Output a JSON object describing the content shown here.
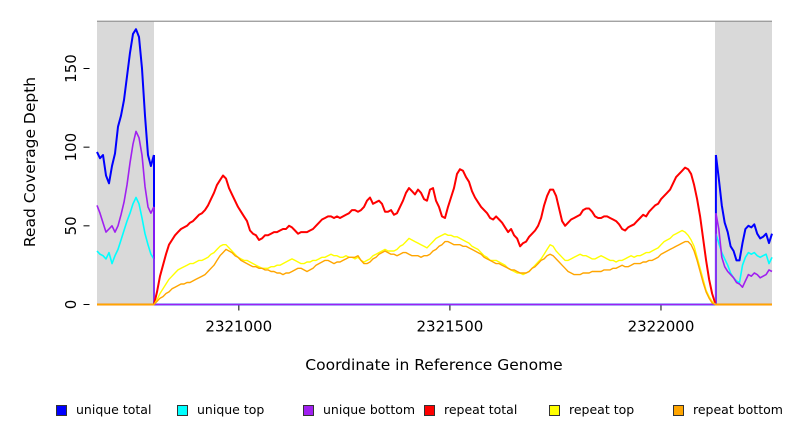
{
  "figure": {
    "ylabel": "Read Coverage Depth",
    "xlabel": "Coordinate in Reference Genome",
    "axis_color": "#000000",
    "legend": [
      {
        "label": "unique total",
        "color": "#0000ff"
      },
      {
        "label": "unique top",
        "color": "#00ffff"
      },
      {
        "label": "unique bottom",
        "color": "#a020f0"
      },
      {
        "label": "repeat total",
        "color": "#ff0000"
      },
      {
        "label": "repeat top",
        "color": "#ffff00"
      },
      {
        "label": "repeat bottom",
        "color": "#ffa500"
      }
    ]
  },
  "chart_data": {
    "type": "line",
    "title": "",
    "xlabel": "Coordinate in Reference Genome",
    "ylabel": "Read Coverage Depth",
    "xlim": [
      2320664,
      2322263
    ],
    "ylim": [
      0,
      180.5
    ],
    "xticks": [
      2321000,
      2321500,
      2322000
    ],
    "yticks": [
      0,
      50,
      100,
      150
    ],
    "grid": false,
    "legend_position": "bottom",
    "shaded_regions": [
      {
        "x0": 2320664,
        "x1": 2320799,
        "color": "#d9d9d9"
      },
      {
        "x0": 2322128,
        "x1": 2322263,
        "color": "#d9d9d9"
      }
    ],
    "hline": {
      "y": 180,
      "color": "#969696",
      "width": 1.3
    },
    "series": [
      {
        "name": "unique total",
        "color": "#0000ff",
        "width": 2,
        "segments": [
          {
            "x0": 2320664,
            "dx": 7.1,
            "v": [
              97,
              93,
              95,
              82,
              77,
              88,
              96,
              113,
              120,
              130,
              145,
              160,
              172,
              175,
              170,
              150,
              120,
              95,
              88,
              95
            ]
          },
          {
            "pts": [
              [
                2320799,
                95
              ],
              [
                2320799,
                0
              ],
              [
                2322130,
                0
              ],
              [
                2322130,
                95
              ]
            ]
          },
          {
            "x0": 2322130,
            "dx": 7.0,
            "v": [
              95,
              80,
              63,
              52,
              46,
              37,
              34,
              28,
              28,
              39,
              48,
              50,
              49,
              51,
              45,
              42,
              43,
              45,
              39,
              45
            ]
          }
        ]
      },
      {
        "name": "unique top",
        "color": "#00ffff",
        "width": 1.6,
        "segments": [
          {
            "x0": 2320664,
            "dx": 7.1,
            "v": [
              34,
              32,
              31,
              29,
              33,
              26,
              31,
              35,
              41,
              47,
              53,
              58,
              64,
              68,
              64,
              55,
              45,
              38,
              32,
              29
            ]
          },
          {
            "pts": [
              [
                2320799,
                29
              ],
              [
                2320799,
                0
              ],
              [
                2322130,
                0
              ],
              [
                2322130,
                45
              ]
            ]
          },
          {
            "x0": 2322130,
            "dx": 7.0,
            "v": [
              45,
              39,
              33,
              29,
              25,
              20,
              17,
              15,
              14,
              25,
              30,
              33,
              32,
              33,
              31,
              30,
              31,
              32,
              26,
              30
            ]
          }
        ]
      },
      {
        "name": "unique bottom",
        "color": "#a020f0",
        "width": 1.6,
        "segments": [
          {
            "x0": 2320664,
            "dx": 7.1,
            "v": [
              63,
              58,
              52,
              46,
              48,
              50,
              46,
              50,
              57,
              65,
              76,
              90,
              102,
              110,
              106,
              95,
              75,
              62,
              58,
              62
            ]
          },
          {
            "pts": [
              [
                2320799,
                62
              ],
              [
                2320799,
                0
              ],
              [
                2322130,
                0
              ],
              [
                2322130,
                58
              ]
            ]
          },
          {
            "x0": 2322130,
            "dx": 7.0,
            "v": [
              58,
              48,
              30,
              24,
              21,
              19,
              17,
              14,
              13,
              11,
              15,
              19,
              18,
              20,
              19,
              17,
              18,
              19,
              22,
              21
            ]
          }
        ]
      },
      {
        "name": "repeat total",
        "color": "#ff0000",
        "width": 2,
        "segments": [
          {
            "pts": [
              [
                2320664,
                0
              ],
              [
                2320799,
                0
              ]
            ]
          },
          {
            "x0": 2320799,
            "dx": 7.108,
            "v": [
              0,
              8,
              18,
              25,
              32,
              38,
              41,
              44,
              46,
              48,
              49,
              50,
              52,
              53,
              55,
              57,
              58,
              60,
              63,
              67,
              71,
              76,
              79,
              82,
              80,
              74,
              70,
              66,
              62,
              59,
              56,
              53,
              47,
              45,
              44,
              41,
              42,
              44,
              44,
              45,
              46,
              46,
              47,
              48,
              48,
              50,
              49,
              47,
              45,
              46,
              46,
              46,
              47,
              48,
              50,
              52,
              54,
              55,
              56,
              56,
              55,
              56,
              55,
              56,
              57,
              58,
              60,
              60,
              59,
              60,
              62,
              66,
              68,
              64,
              65,
              66,
              64,
              59,
              59,
              60,
              57,
              58,
              62,
              66,
              71,
              74,
              72,
              70,
              73,
              71,
              67,
              66,
              73,
              74,
              66,
              62,
              56,
              55,
              62,
              68,
              74,
              83,
              86,
              85,
              81,
              78,
              72,
              68,
              65,
              62,
              60,
              58,
              55,
              54,
              56,
              54,
              52,
              49,
              46,
              48,
              44,
              42,
              37,
              39,
              40,
              43,
              45,
              47,
              50,
              55,
              63,
              69,
              73,
              73,
              69,
              61,
              53,
              50,
              52,
              54,
              55,
              56,
              57,
              60,
              61,
              61,
              59,
              56,
              55,
              55,
              56,
              56,
              55,
              54,
              53,
              51,
              48,
              47,
              49,
              50,
              51,
              53,
              55,
              57,
              56,
              59,
              61,
              63,
              64,
              67,
              69,
              71,
              73,
              77,
              81,
              83,
              85,
              87,
              86,
              83,
              76,
              67,
              56,
              42,
              28,
              16,
              7,
              1
            ]
          },
          {
            "pts": [
              [
                2322128,
                0
              ],
              [
                2322263,
                0
              ]
            ]
          }
        ]
      },
      {
        "name": "repeat top",
        "color": "#ffff00",
        "width": 1.4,
        "segments": [
          {
            "pts": [
              [
                2320664,
                0
              ],
              [
                2320799,
                0
              ]
            ]
          },
          {
            "x0": 2320799,
            "dx": 7.108,
            "v": [
              0,
              3,
              7,
              10,
              13,
              16,
              18,
              20,
              22,
              23,
              24,
              25,
              26,
              26,
              27,
              28,
              28,
              29,
              30,
              32,
              33,
              35,
              37,
              38,
              38,
              36,
              34,
              32,
              30,
              29,
              28,
              28,
              27,
              26,
              25,
              24,
              23,
              23,
              23,
              24,
              24,
              25,
              25,
              26,
              27,
              28,
              29,
              28,
              27,
              26,
              26,
              27,
              27,
              28,
              28,
              29,
              30,
              30,
              31,
              32,
              31,
              31,
              30,
              30,
              31,
              30,
              30,
              29,
              30,
              28,
              27,
              28,
              29,
              31,
              32,
              33,
              34,
              35,
              34,
              34,
              34,
              35,
              37,
              38,
              40,
              42,
              41,
              40,
              39,
              38,
              37,
              36,
              38,
              40,
              42,
              43,
              44,
              45,
              44,
              44,
              43,
              43,
              42,
              41,
              40,
              39,
              37,
              36,
              35,
              33,
              31,
              30,
              28,
              28,
              28,
              27,
              26,
              25,
              23,
              22,
              21,
              20,
              20,
              19,
              20,
              21,
              23,
              25,
              27,
              29,
              32,
              35,
              38,
              37,
              34,
              32,
              30,
              28,
              28,
              29,
              30,
              31,
              32,
              31,
              31,
              30,
              29,
              29,
              30,
              31,
              30,
              29,
              28,
              28,
              27,
              28,
              28,
              29,
              30,
              31,
              30,
              31,
              31,
              32,
              33,
              33,
              34,
              35,
              36,
              38,
              40,
              41,
              42,
              44,
              45,
              46,
              47,
              46,
              44,
              41,
              37,
              30,
              23,
              16,
              9,
              5,
              2,
              0
            ]
          },
          {
            "pts": [
              [
                2322128,
                0
              ],
              [
                2322263,
                0
              ]
            ]
          }
        ]
      },
      {
        "name": "repeat bottom",
        "color": "#ffa500",
        "width": 1.4,
        "segments": [
          {
            "pts": [
              [
                2320664,
                0
              ],
              [
                2320799,
                0
              ]
            ]
          },
          {
            "x0": 2320799,
            "dx": 7.108,
            "v": [
              0,
              2,
              4,
              5,
              7,
              8,
              10,
              11,
              12,
              13,
              13,
              14,
              14,
              15,
              16,
              17,
              18,
              19,
              21,
              23,
              25,
              28,
              31,
              33,
              35,
              34,
              33,
              31,
              30,
              28,
              27,
              26,
              25,
              24,
              24,
              23,
              23,
              22,
              22,
              21,
              21,
              20,
              20,
              19,
              20,
              20,
              21,
              22,
              23,
              23,
              22,
              21,
              22,
              23,
              25,
              26,
              27,
              28,
              28,
              27,
              26,
              27,
              27,
              28,
              29,
              30,
              30,
              30,
              31,
              28,
              26,
              26,
              27,
              29,
              30,
              32,
              33,
              34,
              33,
              32,
              32,
              31,
              32,
              33,
              33,
              32,
              31,
              31,
              31,
              30,
              31,
              31,
              32,
              34,
              35,
              37,
              38,
              40,
              40,
              39,
              38,
              38,
              38,
              37,
              37,
              36,
              35,
              34,
              33,
              32,
              30,
              29,
              28,
              27,
              26,
              26,
              25,
              24,
              23,
              22,
              22,
              21,
              20,
              20,
              20,
              21,
              23,
              24,
              26,
              28,
              29,
              31,
              32,
              31,
              29,
              27,
              25,
              23,
              21,
              20,
              19,
              19,
              19,
              20,
              20,
              20,
              21,
              21,
              21,
              21,
              22,
              22,
              22,
              23,
              23,
              24,
              25,
              24,
              24,
              25,
              26,
              26,
              26,
              27,
              27,
              28,
              28,
              29,
              30,
              32,
              33,
              34,
              35,
              36,
              37,
              38,
              39,
              40,
              40,
              38,
              34,
              28,
              21,
              14,
              8,
              4,
              1,
              0
            ]
          },
          {
            "pts": [
              [
                2322128,
                0
              ],
              [
                2322263,
                0
              ]
            ]
          }
        ]
      }
    ]
  }
}
